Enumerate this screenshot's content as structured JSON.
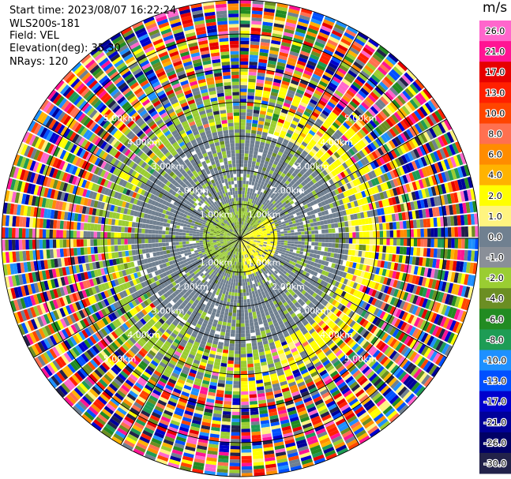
{
  "header": {
    "start_time": "Start time: 2023/08/07 16:22:24",
    "instrument": "WLS200s-181",
    "field": "Field: VEL",
    "elevation": "Elevation(deg): 35.30",
    "nrays": "NRays: 120"
  },
  "chart_data": {
    "type": "heatmap",
    "projection": "polar-ppi",
    "field": "VEL",
    "nrays": 120,
    "elevation_deg": 35.3,
    "range_ring_labels": [
      "1.00km",
      "2.00km",
      "3.00km",
      "4.00km",
      "5.00km"
    ],
    "range_rings_km": [
      1,
      2,
      3,
      4,
      5,
      6,
      7
    ],
    "range_max_km": 7.0,
    "colorbar": {
      "unit": "m/s",
      "ticks": [
        "26.0",
        "21.0",
        "17.0",
        "13.0",
        "10.0",
        "8.0",
        "6.0",
        "4.0",
        "2.0",
        "1.0",
        "0.0",
        "-1.0",
        "-2.0",
        "-4.0",
        "-6.0",
        "-8.0",
        "-10.0",
        "-13.0",
        "-17.0",
        "-21.0",
        "-26.0",
        "-30.0"
      ],
      "colors": [
        "#ff66cc",
        "#ff1493",
        "#e60000",
        "#ff2000",
        "#ff4500",
        "#ff7050",
        "#ff8c00",
        "#ffb300",
        "#ffff00",
        "#fff480",
        "#708090",
        "#8a8f98",
        "#9acd32",
        "#6b8e23",
        "#228b22",
        "#1e9c55",
        "#1e90ff",
        "#0050ff",
        "#0000cd",
        "#000099",
        "#000066",
        "#22224a"
      ]
    },
    "regions": [
      {
        "range_km": [
          0,
          1.1
        ],
        "description": "mixed green/yellow near field"
      },
      {
        "range_km": [
          1.1,
          3.2
        ],
        "description": "gray (near-zero velocity) with green patches"
      },
      {
        "range_km": [
          3.2,
          4.0
        ],
        "description": "yellow/green ring with gray"
      },
      {
        "range_km": [
          4.0,
          7.0
        ],
        "description": "noisy multicolor"
      }
    ]
  }
}
